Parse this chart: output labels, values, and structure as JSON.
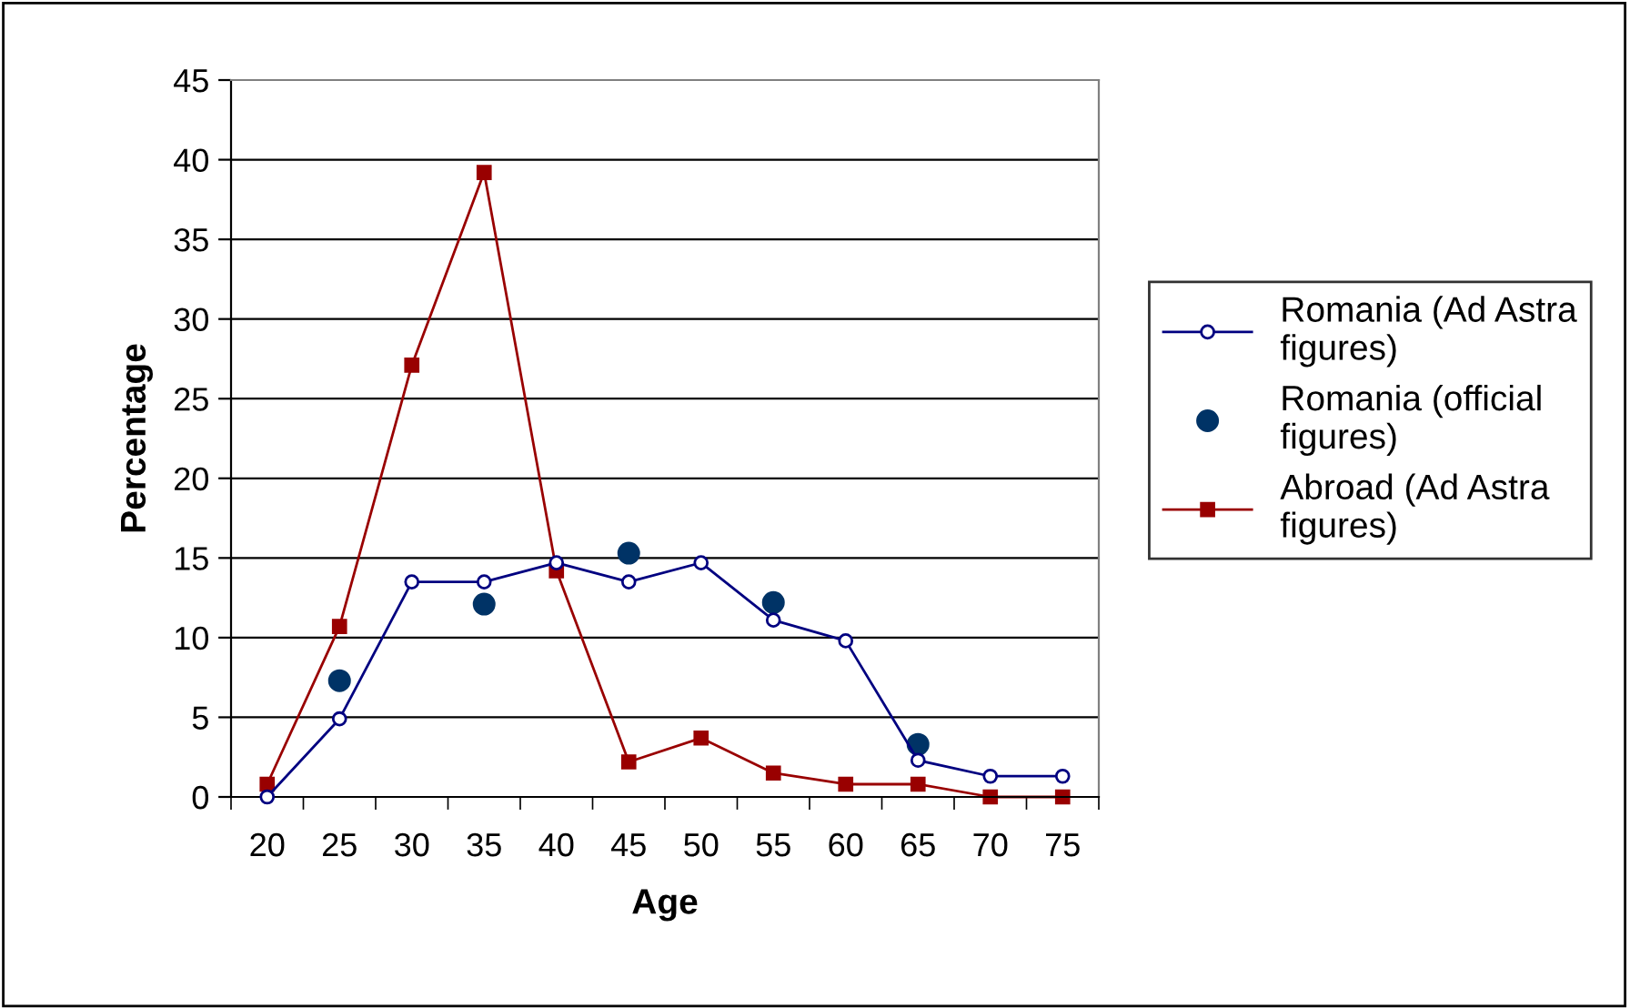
{
  "chart_data": {
    "type": "line",
    "xlabel": "Age",
    "ylabel": "Percentage",
    "categories": [
      "20",
      "25",
      "30",
      "35",
      "40",
      "45",
      "50",
      "55",
      "60",
      "65",
      "70",
      "75"
    ],
    "series": [
      {
        "name": "Romania (Ad Astra figures)",
        "color": "#000080",
        "marker": "circle",
        "values": [
          0,
          4.9,
          13.5,
          13.5,
          14.7,
          13.5,
          14.7,
          11.1,
          9.8,
          2.3,
          1.3,
          1.3
        ]
      },
      {
        "name": "Romania (official figures)",
        "color": "#003366",
        "type": "scatter",
        "marker": "circle",
        "values": [
          null,
          7.3,
          null,
          12.1,
          null,
          15.3,
          null,
          12.2,
          null,
          3.3,
          null,
          null
        ]
      },
      {
        "name": "Abroad (Ad Astra figures)",
        "color": "#990000",
        "marker": "square",
        "values": [
          0.8,
          10.7,
          27.1,
          39.2,
          14.2,
          2.2,
          3.7,
          1.5,
          0.8,
          0.8,
          0,
          0
        ]
      }
    ],
    "ylim": [
      0,
      45
    ],
    "yticks": [
      0,
      5,
      10,
      15,
      20,
      25,
      30,
      35,
      40,
      45
    ],
    "grid": "y",
    "legend": "right"
  }
}
